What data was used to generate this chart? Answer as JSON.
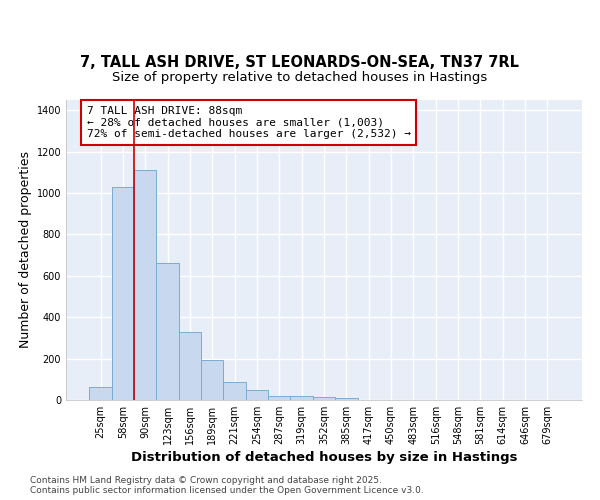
{
  "title1": "7, TALL ASH DRIVE, ST LEONARDS-ON-SEA, TN37 7RL",
  "title2": "Size of property relative to detached houses in Hastings",
  "xlabel": "Distribution of detached houses by size in Hastings",
  "ylabel": "Number of detached properties",
  "categories": [
    "25sqm",
    "58sqm",
    "90sqm",
    "123sqm",
    "156sqm",
    "189sqm",
    "221sqm",
    "254sqm",
    "287sqm",
    "319sqm",
    "352sqm",
    "385sqm",
    "417sqm",
    "450sqm",
    "483sqm",
    "516sqm",
    "548sqm",
    "581sqm",
    "614sqm",
    "646sqm",
    "679sqm"
  ],
  "values": [
    65,
    1030,
    1110,
    660,
    330,
    195,
    85,
    48,
    20,
    20,
    15,
    10,
    0,
    0,
    0,
    0,
    0,
    0,
    0,
    0,
    0
  ],
  "bar_color": "#c8d8ef",
  "bar_edge_color": "#7aadd4",
  "vline_x": 1.5,
  "vline_color": "#cc0000",
  "annotation_text": "7 TALL ASH DRIVE: 88sqm\n← 28% of detached houses are smaller (1,003)\n72% of semi-detached houses are larger (2,532) →",
  "annotation_box_color": "#ffffff",
  "annotation_box_edge_color": "#cc0000",
  "ylim": [
    0,
    1450
  ],
  "yticks": [
    0,
    200,
    400,
    600,
    800,
    1000,
    1200,
    1400
  ],
  "bg_color": "#ffffff",
  "plot_bg_color": "#e8eef8",
  "grid_color": "#ffffff",
  "footer_text": "Contains HM Land Registry data © Crown copyright and database right 2025.\nContains public sector information licensed under the Open Government Licence v3.0.",
  "title_fontsize": 10.5,
  "subtitle_fontsize": 9.5,
  "axis_label_fontsize": 9,
  "tick_fontsize": 7,
  "annotation_fontsize": 8,
  "footer_fontsize": 6.5
}
